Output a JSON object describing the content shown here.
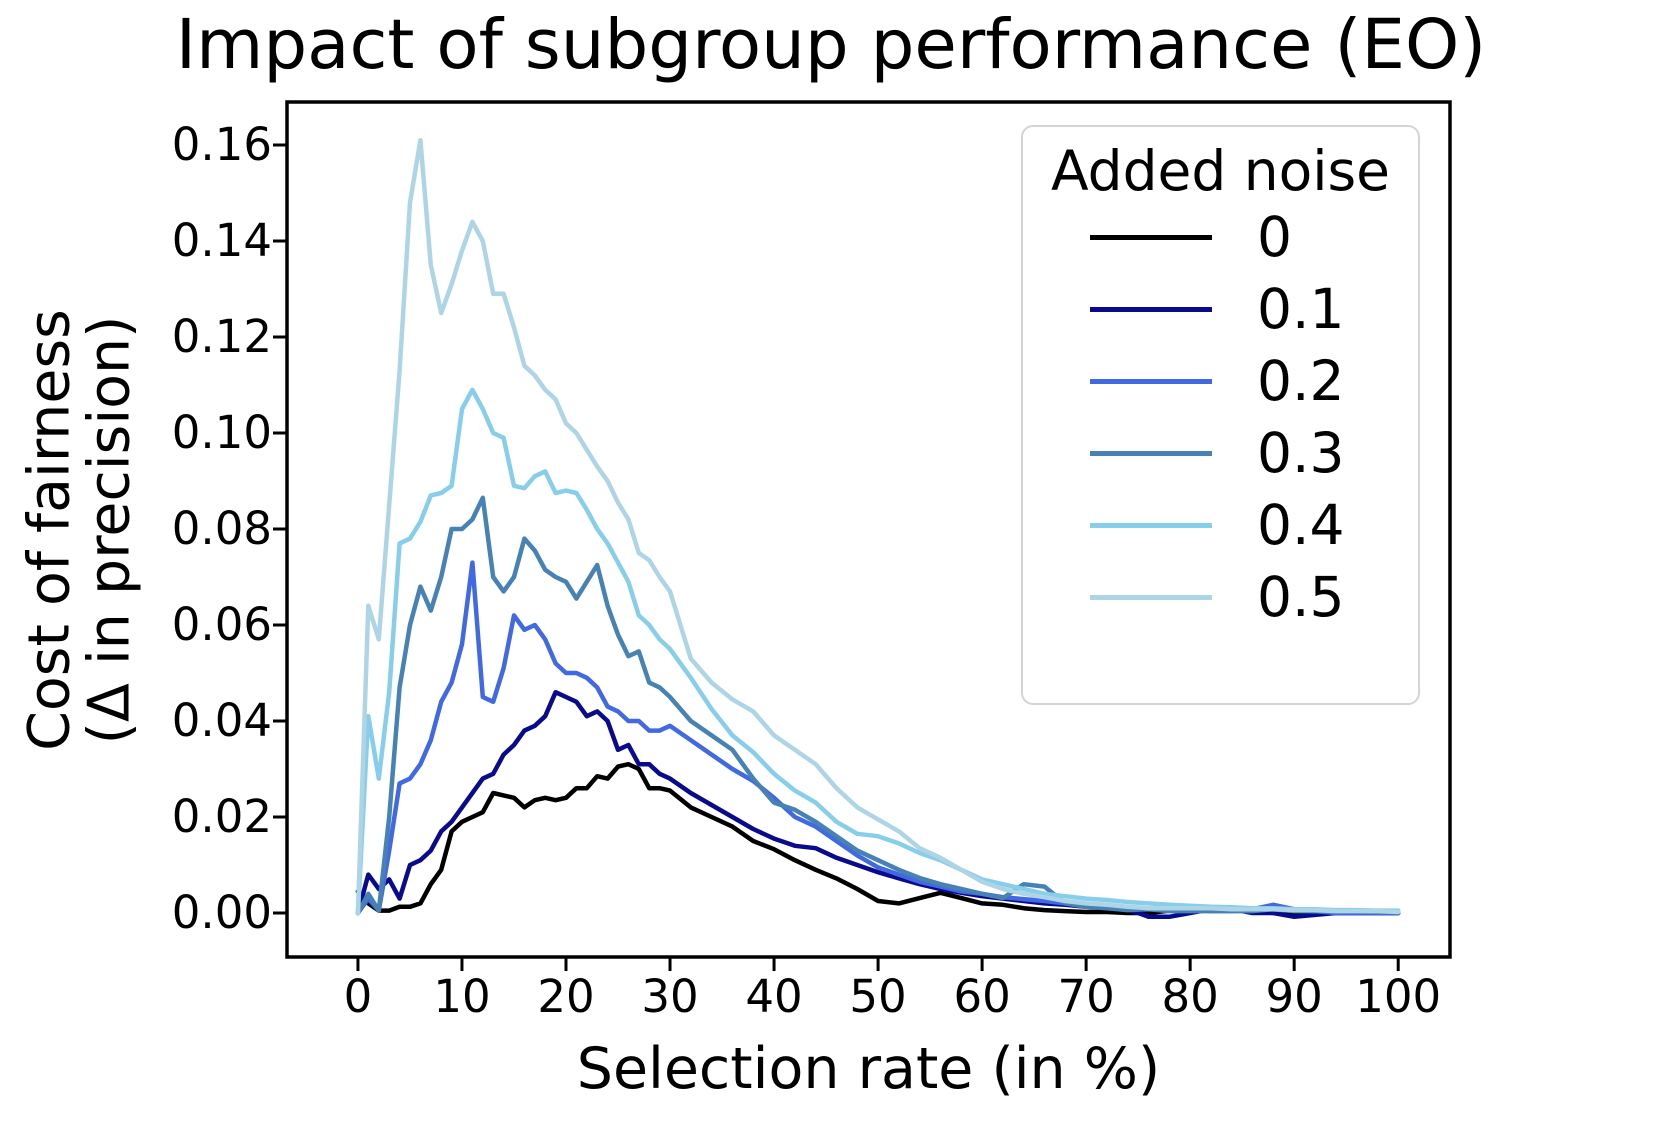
{
  "chart_data": {
    "type": "line",
    "title": "Impact of subgroup performance (EO)",
    "xlabel": "Selection rate (in %)",
    "ylabel": "Cost of fairness (Δ in precision)",
    "ylabel_line1": "Cost of fairness",
    "ylabel_line2": "(Δ in precision)",
    "legend_title": "Added noise",
    "legend_position": "upper right",
    "grid": false,
    "line_color_names": [
      "black",
      "navy",
      "royalblue",
      "steelblue",
      "skyblue",
      "lightblue"
    ],
    "x_ticks": [
      "0",
      "10",
      "20",
      "30",
      "40",
      "50",
      "60",
      "70",
      "80",
      "90",
      "100"
    ],
    "y_ticks": [
      "0.00",
      "0.02",
      "0.04",
      "0.06",
      "0.08",
      "0.10",
      "0.12",
      "0.14",
      "0.16"
    ],
    "xlim": [
      -6.82,
      104.98
    ],
    "ylim": [
      -0.009167,
      0.16896
    ],
    "x": [
      0,
      1,
      2,
      3,
      4,
      5,
      6,
      7,
      8,
      9,
      10,
      11,
      12,
      13,
      14,
      15,
      16,
      17,
      18,
      19,
      20,
      21,
      22,
      23,
      24,
      25,
      26,
      27,
      28,
      29,
      30,
      32,
      34,
      36,
      38,
      40,
      42,
      44,
      46,
      48,
      50,
      52,
      54,
      56,
      58,
      60,
      62,
      64,
      66,
      68,
      70,
      72,
      74,
      76,
      78,
      80,
      82,
      84,
      86,
      88,
      90,
      92,
      94,
      96,
      98,
      100
    ],
    "series": [
      {
        "name": "0",
        "color": "#000000",
        "values": [
          0.0045,
          0.002,
          0.0005,
          0.0005,
          0.0013,
          0.0013,
          0.002,
          0.006,
          0.009,
          0.017,
          0.019,
          0.02,
          0.021,
          0.025,
          0.0245,
          0.024,
          0.022,
          0.0235,
          0.024,
          0.0235,
          0.024,
          0.026,
          0.026,
          0.0285,
          0.028,
          0.0305,
          0.031,
          0.03,
          0.026,
          0.026,
          0.0255,
          0.022,
          0.02,
          0.018,
          0.015,
          0.0133,
          0.011,
          0.009,
          0.0072,
          0.005,
          0.0025,
          0.002,
          0.0031,
          0.0042,
          0.0031,
          0.002,
          0.0017,
          0.001,
          0.0006,
          0.0004,
          0.0002,
          0.0002,
          0,
          0,
          0.0005,
          0.001,
          0.0012,
          0.001,
          0.0005,
          0,
          -0.0005,
          0,
          0,
          0,
          0,
          0
        ]
      },
      {
        "name": "0.1",
        "color": "#0a0a8c",
        "values": [
          0,
          0.008,
          0.005,
          0.007,
          0.003,
          0.01,
          0.011,
          0.013,
          0.017,
          0.019,
          0.022,
          0.025,
          0.028,
          0.029,
          0.033,
          0.035,
          0.038,
          0.039,
          0.041,
          0.046,
          0.045,
          0.044,
          0.041,
          0.042,
          0.04,
          0.034,
          0.035,
          0.031,
          0.031,
          0.029,
          0.028,
          0.025,
          0.0225,
          0.02,
          0.0175,
          0.0155,
          0.014,
          0.0135,
          0.0115,
          0.01,
          0.0085,
          0.0072,
          0.006,
          0.005,
          0.0042,
          0.0035,
          0.003,
          0.0025,
          0.002,
          0.0017,
          0.0013,
          0.001,
          0.0008,
          -0.0008,
          -0.0008,
          0,
          0.0008,
          0.0008,
          0,
          0,
          -0.0008,
          -0.0004,
          0,
          0,
          0,
          0
        ]
      },
      {
        "name": "0.2",
        "color": "#4169e1",
        "values": [
          0,
          0.003,
          0.0005,
          0.013,
          0.027,
          0.028,
          0.031,
          0.036,
          0.044,
          0.048,
          0.056,
          0.073,
          0.045,
          0.044,
          0.051,
          0.062,
          0.059,
          0.06,
          0.057,
          0.052,
          0.05,
          0.05,
          0.049,
          0.047,
          0.043,
          0.042,
          0.04,
          0.04,
          0.038,
          0.038,
          0.039,
          0.036,
          0.033,
          0.03,
          0.0275,
          0.024,
          0.02,
          0.018,
          0.015,
          0.012,
          0.0095,
          0.008,
          0.0065,
          0.0055,
          0.0045,
          0.004,
          0.0033,
          0.0029,
          0.0025,
          0.002,
          0.0017,
          0.0013,
          0.001,
          0.001,
          0.001,
          0.0008,
          0.0004,
          0.0004,
          0.0008,
          0.0017,
          0.0008,
          0.0004,
          0,
          0,
          0,
          0
        ]
      },
      {
        "name": "0.3",
        "color": "#4682b4",
        "values": [
          0,
          0.004,
          0.0005,
          0.02,
          0.047,
          0.06,
          0.068,
          0.063,
          0.07,
          0.08,
          0.08,
          0.082,
          0.0865,
          0.07,
          0.067,
          0.07,
          0.078,
          0.0755,
          0.0715,
          0.07,
          0.069,
          0.0655,
          0.069,
          0.0725,
          0.064,
          0.058,
          0.0535,
          0.0545,
          0.048,
          0.047,
          0.045,
          0.04,
          0.037,
          0.034,
          0.028,
          0.023,
          0.0215,
          0.019,
          0.016,
          0.013,
          0.011,
          0.009,
          0.0073,
          0.006,
          0.005,
          0.004,
          0.0031,
          0.006,
          0.0055,
          0.002,
          0.0013,
          0.001,
          0.0006,
          0.0008,
          0.0004,
          0.0004,
          0.0004,
          0.0004,
          0.0004,
          0.0008,
          0.0004,
          0.0004,
          0.0004,
          0.0004,
          0.0002,
          0.0002
        ]
      },
      {
        "name": "0.4",
        "color": "#87ceeb",
        "values": [
          0,
          0.041,
          0.028,
          0.046,
          0.077,
          0.078,
          0.0815,
          0.087,
          0.0875,
          0.089,
          0.105,
          0.109,
          0.105,
          0.1,
          0.099,
          0.089,
          0.0885,
          0.091,
          0.092,
          0.0875,
          0.088,
          0.0875,
          0.084,
          0.08,
          0.077,
          0.073,
          0.069,
          0.062,
          0.06,
          0.057,
          0.055,
          0.049,
          0.0425,
          0.037,
          0.0335,
          0.029,
          0.0255,
          0.023,
          0.019,
          0.0165,
          0.016,
          0.0145,
          0.0125,
          0.011,
          0.009,
          0.007,
          0.006,
          0.005,
          0.004,
          0.0035,
          0.003,
          0.0027,
          0.0023,
          0.002,
          0.0017,
          0.0015,
          0.0013,
          0.0012,
          0.001,
          0.001,
          0.0008,
          0.0008,
          0.0006,
          0.0006,
          0.0005,
          0.0005
        ]
      },
      {
        "name": "0.5",
        "color": "#aed5e6",
        "values": [
          0,
          0.064,
          0.057,
          0.085,
          0.113,
          0.148,
          0.161,
          0.135,
          0.125,
          0.131,
          0.138,
          0.144,
          0.14,
          0.129,
          0.129,
          0.122,
          0.114,
          0.112,
          0.109,
          0.107,
          0.102,
          0.1,
          0.0965,
          0.093,
          0.09,
          0.0855,
          0.082,
          0.075,
          0.0735,
          0.07,
          0.067,
          0.053,
          0.048,
          0.0445,
          0.042,
          0.037,
          0.034,
          0.031,
          0.026,
          0.022,
          0.0195,
          0.017,
          0.0135,
          0.0115,
          0.009,
          0.0065,
          0.005,
          0.004,
          0.0033,
          0.0025,
          0.002,
          0.0017,
          0.0013,
          0.001,
          0.001,
          0.001,
          0.001,
          0.0008,
          0.0008,
          0.0008,
          0.0006,
          0.0006,
          0.0004,
          0.0004,
          0.0004,
          0.0002
        ]
      }
    ]
  }
}
